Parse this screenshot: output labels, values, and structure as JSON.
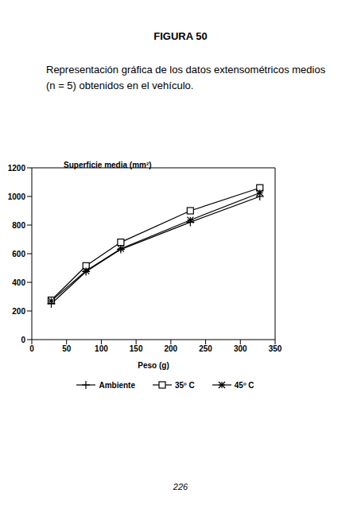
{
  "chart_data": {
    "type": "line",
    "title": "FIGURA 50",
    "subtitle": "Representación gráfica de los datos extensométricos medios (n = 5) obtenidos en el vehículo.",
    "x_label": "Peso (g)",
    "y_label": "Superficie media (mm²)",
    "annotations": [
      "226"
    ],
    "x": [
      28,
      78,
      128,
      228,
      328
    ],
    "series": [
      {
        "name": "Ambiente",
        "color": "#000000",
        "marker": "plus",
        "values": [
          250,
          475,
          630,
          820,
          1000
        ]
      },
      {
        "name": "35º C",
        "color": "#000000",
        "marker": "square",
        "values": [
          275,
          515,
          680,
          900,
          1060
        ]
      },
      {
        "name": "45º C",
        "color": "#000000",
        "marker": "star",
        "values": [
          270,
          480,
          635,
          835,
          1025
        ]
      }
    ],
    "xlim": [
      0,
      350
    ],
    "xticks": [
      0,
      50,
      100,
      150,
      200,
      250,
      300,
      350
    ],
    "ylim": [
      0,
      1200
    ],
    "yticks": [
      0,
      200,
      400,
      600,
      800,
      1000,
      1200
    ],
    "grid": false,
    "legend": "bottom"
  }
}
